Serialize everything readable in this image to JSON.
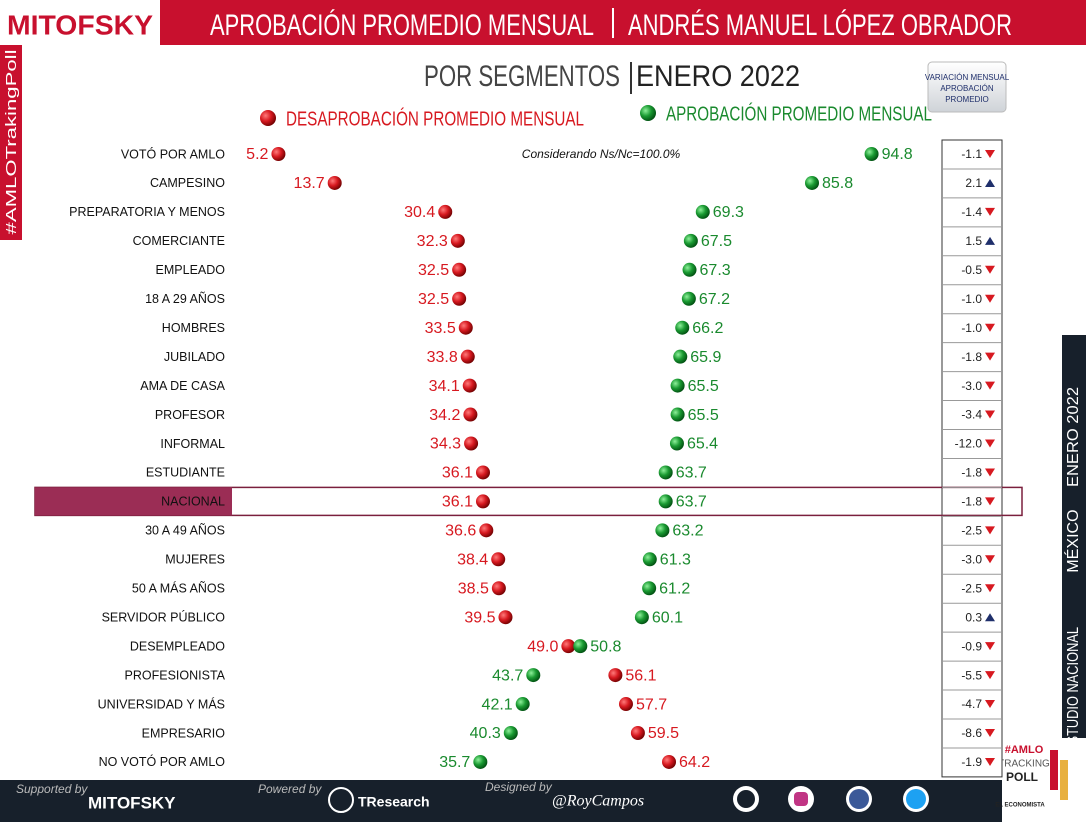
{
  "header": {
    "logo": "MITOFSKY",
    "title": "APROBACIÓN PROMEDIO MENSUAL",
    "title2": "ANDRÉS MANUEL LÓPEZ OBRADOR",
    "subtitle": "POR SEGMENTOS",
    "subtitle2": "ENERO 2022"
  },
  "side": {
    "left": "#AMLOTrakingPoll",
    "right": [
      "ESTUDIO NACIONAL",
      "MÉXICO",
      "ENERO 2022"
    ]
  },
  "chart_data": {
    "type": "dot",
    "note": "Considerando Ns/Nc=100.0%",
    "categories": [
      "VOTÓ POR AMLO",
      "CAMPESINO",
      "PREPARATORIA Y MENOS",
      "COMERCIANTE",
      "EMPLEADO",
      "18 A 29 AÑOS",
      "HOMBRES",
      "JUBILADO",
      "AMA DE CASA",
      "PROFESOR",
      "INFORMAL",
      "ESTUDIANTE",
      "NACIONAL",
      "30 A 49 AÑOS",
      "MUJERES",
      "50 A MÁS AÑOS",
      "SERVIDOR PÚBLICO",
      "DESEMPLEADO",
      "PROFESIONISTA",
      "UNIVERSIDAD Y MÁS",
      "EMPRESARIO",
      "NO VOTÓ POR AMLO"
    ],
    "xlim": [
      0,
      100
    ],
    "highlight": 12,
    "series": [
      {
        "name": "DESAPROBACIÓN PROMEDIO MENSUAL",
        "color": "#d71920",
        "values": [
          5.2,
          13.7,
          30.4,
          32.3,
          32.5,
          32.5,
          33.5,
          33.8,
          34.1,
          34.2,
          34.3,
          36.1,
          36.1,
          36.6,
          38.4,
          38.5,
          39.5,
          49.0,
          56.1,
          57.7,
          59.5,
          64.2
        ],
        "value_labels": [
          "5.2",
          "13.7",
          "30.4",
          "32.3",
          "32.5",
          "32.5",
          "33.5",
          "33.8",
          "34.1",
          "34.2",
          "34.3",
          "36.1",
          "36.1",
          "36.6",
          "38.4",
          "38.5",
          "39.5",
          "49.0",
          "56.1",
          "57.7",
          "59.5",
          "64.2"
        ]
      },
      {
        "name": "APROBACIÓN PROMEDIO MENSUAL",
        "color": "#1a8a2e",
        "values": [
          94.8,
          85.8,
          69.3,
          67.5,
          67.3,
          67.2,
          66.2,
          65.9,
          65.5,
          65.5,
          65.4,
          63.7,
          63.7,
          63.2,
          61.3,
          61.2,
          60.1,
          50.8,
          43.7,
          42.1,
          40.3,
          35.7
        ],
        "value_labels": [
          "94.8",
          "85.8",
          "69.3",
          "67.5",
          "67.3",
          "67.2",
          "66.2",
          "65.9",
          "65.5",
          "65.5",
          "65.4",
          "63.7",
          "63.7",
          "63.2",
          "61.3",
          "61.2",
          "60.1",
          "50.8",
          "43.7",
          "42.1",
          "40.3",
          "35.7"
        ]
      }
    ],
    "variation": {
      "title": [
        "VARIACIÓN MENSUAL",
        "APROBACIÓN",
        "PROMEDIO"
      ],
      "values": [
        -1.1,
        2.1,
        -1.4,
        1.5,
        -0.5,
        -1.0,
        -1.0,
        -1.8,
        -3.0,
        -3.4,
        -12.0,
        -1.8,
        -1.8,
        -2.5,
        -3.0,
        -2.5,
        0.3,
        -0.9,
        -5.5,
        -4.7,
        -8.6,
        -1.9
      ],
      "value_labels": [
        "-1.1",
        "2.1",
        "-1.4",
        "1.5",
        "-0.5",
        "-1.0",
        "-1.0",
        "-1.8",
        "-3.0",
        "-3.4",
        "-12.0",
        "-1.8",
        "-1.8",
        "-2.5",
        "-3.0",
        "-2.5",
        "0.3",
        "-0.9",
        "-5.5",
        "-4.7",
        "-8.6",
        "-1.9"
      ],
      "up_color": "#1f2f6b",
      "down_color": "#d71920"
    }
  },
  "footer": {
    "supported": "Supported by",
    "supported_by": "MITOFSKY",
    "powered": "Powered by",
    "powered_by": "TResearch",
    "designed": "Designed by",
    "designed_by": "@RoyCampos",
    "badge": [
      "#AMLO",
      "TRACKING",
      "POLL",
      "EL ECONOMISTA"
    ]
  }
}
